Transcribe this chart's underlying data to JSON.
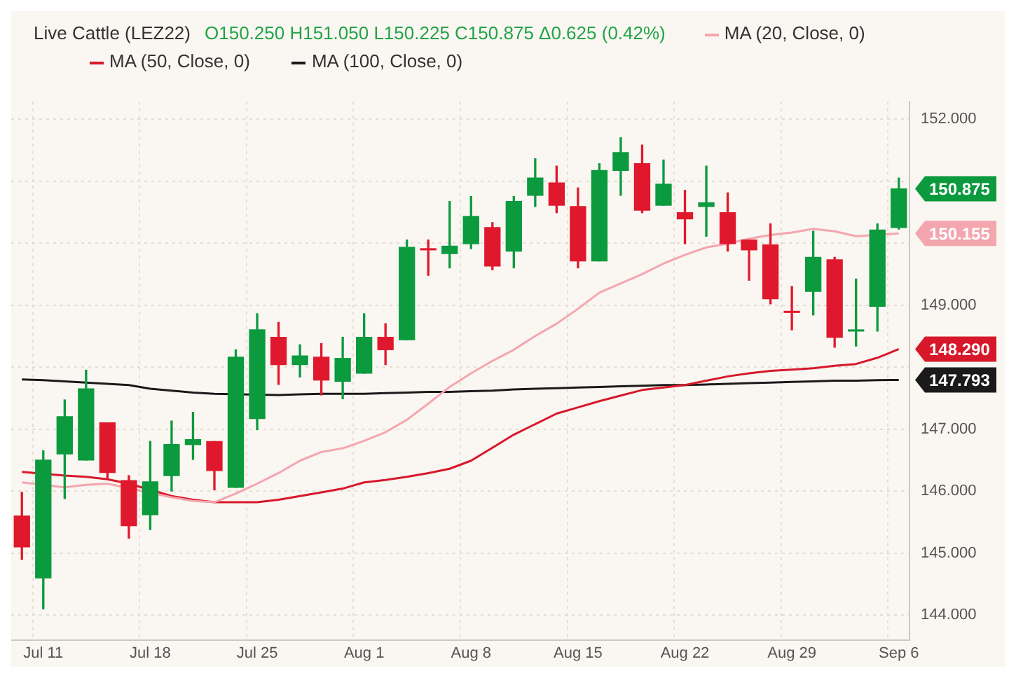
{
  "chart_data": {
    "type": "candlestick",
    "title": "Live Cattle (LEZ22)",
    "subtitle": "O150.250 H151.050 L150.225 C150.875 Δ0.625 (0.42%)",
    "categories": [
      null,
      "Jul 11",
      null,
      null,
      null,
      null,
      "Jul 18",
      null,
      null,
      null,
      null,
      "Jul 25",
      null,
      null,
      null,
      null,
      "Aug 1",
      null,
      null,
      null,
      null,
      "Aug 8",
      null,
      null,
      null,
      null,
      "Aug 15",
      null,
      null,
      null,
      null,
      "Aug 22",
      null,
      null,
      null,
      null,
      "Aug 29",
      null,
      null,
      null,
      null,
      "Sep 6"
    ],
    "ohlc": [
      [
        145.6,
        145.98,
        144.9,
        145.1
      ],
      [
        144.6,
        146.65,
        144.1,
        146.5
      ],
      [
        146.6,
        147.47,
        145.88,
        147.2
      ],
      [
        146.5,
        147.95,
        146.5,
        147.65
      ],
      [
        147.1,
        147.1,
        146.2,
        146.3
      ],
      [
        146.17,
        146.25,
        145.24,
        145.44
      ],
      [
        145.62,
        146.8,
        145.38,
        146.15
      ],
      [
        146.25,
        147.13,
        146.0,
        146.75
      ],
      [
        146.75,
        147.27,
        146.51,
        146.83
      ],
      [
        146.8,
        146.8,
        146.02,
        146.33
      ],
      [
        146.06,
        148.28,
        146.06,
        148.16
      ],
      [
        147.17,
        148.86,
        146.99,
        148.6
      ],
      [
        148.48,
        148.72,
        147.72,
        148.04
      ],
      [
        148.04,
        148.36,
        147.84,
        148.18
      ],
      [
        148.16,
        148.38,
        147.55,
        147.79
      ],
      [
        147.77,
        148.48,
        147.49,
        148.14
      ],
      [
        147.9,
        148.86,
        147.9,
        148.48
      ],
      [
        148.48,
        148.7,
        148.04,
        148.28
      ],
      [
        148.44,
        150.05,
        148.44,
        149.93
      ],
      [
        149.91,
        150.05,
        149.48,
        149.89
      ],
      [
        149.83,
        150.67,
        149.6,
        149.95
      ],
      [
        149.99,
        150.75,
        149.91,
        150.43
      ],
      [
        150.25,
        150.33,
        149.57,
        149.63
      ],
      [
        149.87,
        150.75,
        149.6,
        150.67
      ],
      [
        150.77,
        151.36,
        150.59,
        151.05
      ],
      [
        150.97,
        151.24,
        150.49,
        150.61
      ],
      [
        150.59,
        150.89,
        149.6,
        149.71
      ],
      [
        149.71,
        151.28,
        149.71,
        151.17
      ],
      [
        151.17,
        151.7,
        150.77,
        151.46
      ],
      [
        151.28,
        151.58,
        150.49,
        150.53
      ],
      [
        150.61,
        151.34,
        150.61,
        150.95
      ],
      [
        150.49,
        150.85,
        149.99,
        150.39
      ],
      [
        150.59,
        151.24,
        150.11,
        150.65
      ],
      [
        150.49,
        150.81,
        149.87,
        149.99
      ],
      [
        150.05,
        150.05,
        149.4,
        149.89
      ],
      [
        149.97,
        150.31,
        149.02,
        149.1
      ],
      [
        148.9,
        149.3,
        148.6,
        148.88
      ],
      [
        149.22,
        150.19,
        148.84,
        149.77
      ],
      [
        149.73,
        149.77,
        148.32,
        148.48
      ],
      [
        148.58,
        149.42,
        148.34,
        148.6
      ],
      [
        148.98,
        150.31,
        148.58,
        150.21
      ],
      [
        150.25,
        151.05,
        150.225,
        150.875
      ]
    ],
    "colors": [
      "#e0182d",
      "#0b9a3e",
      "#0b9a3e",
      "#0b9a3e",
      "#e0182d",
      "#e0182d",
      "#0b9a3e",
      "#0b9a3e",
      "#0b9a3e",
      "#e0182d",
      "#0b9a3e",
      "#0b9a3e",
      "#e0182d",
      "#0b9a3e",
      "#e0182d",
      "#0b9a3e",
      "#0b9a3e",
      "#e0182d",
      "#0b9a3e",
      "#e0182d",
      "#0b9a3e",
      "#0b9a3e",
      "#e0182d",
      "#0b9a3e",
      "#0b9a3e",
      "#e0182d",
      "#e0182d",
      "#0b9a3e",
      "#0b9a3e",
      "#e0182d",
      "#0b9a3e",
      "#e0182d",
      "#0b9a3e",
      "#e0182d",
      "#e0182d",
      "#e0182d",
      "#e0182d",
      "#0b9a3e",
      "#e0182d",
      "#0b9a3e",
      "#0b9a3e",
      "#0b9a3e"
    ],
    "series": [
      {
        "type": "line",
        "name": "MA (20, Close, 0)",
        "color": "#f4a6ae",
        "values": [
          146.14,
          null,
          146.06,
          146.1,
          146.12,
          null,
          null,
          145.9,
          145.84,
          145.82,
          145.96,
          146.12,
          146.29,
          146.49,
          146.63,
          146.69,
          146.81,
          146.95,
          147.15,
          147.41,
          147.68,
          147.9,
          148.1,
          148.28,
          148.5,
          148.7,
          148.94,
          149.2,
          149.35,
          149.5,
          149.67,
          149.81,
          149.93,
          149.99,
          150.07,
          150.13,
          150.17,
          150.23,
          150.19,
          150.11,
          null,
          150.155
        ]
      },
      {
        "type": "line",
        "name": "MA (50, Close, 0)",
        "color": "#d7182a",
        "values": [
          146.31,
          null,
          146.25,
          146.23,
          146.19,
          146.12,
          null,
          145.92,
          145.86,
          145.82,
          145.82,
          145.82,
          145.86,
          145.92,
          145.98,
          146.04,
          146.14,
          146.18,
          146.23,
          146.29,
          146.36,
          146.49,
          146.7,
          146.91,
          147.08,
          147.25,
          147.35,
          147.45,
          147.54,
          147.63,
          147.67,
          147.71,
          147.78,
          147.85,
          147.9,
          147.94,
          147.96,
          147.98,
          148.02,
          148.05,
          148.15,
          148.29
        ]
      },
      {
        "type": "line",
        "name": "MA (100, Close, 0)",
        "color": "#1a1a1a",
        "values": [
          147.8,
          147.79,
          147.77,
          147.75,
          147.73,
          147.71,
          147.65,
          147.62,
          147.59,
          147.57,
          null,
          null,
          147.55,
          147.56,
          147.57,
          147.57,
          147.57,
          147.58,
          147.59,
          147.6,
          147.6,
          147.61,
          147.62,
          147.64,
          147.65,
          147.66,
          147.67,
          147.68,
          147.69,
          147.7,
          147.71,
          147.71,
          147.72,
          147.73,
          147.74,
          147.75,
          147.76,
          147.77,
          147.78,
          147.78,
          147.79,
          147.793
        ]
      }
    ],
    "ylim": [
      143.6,
      152.28
    ],
    "yticks": [
      {
        "value": 144,
        "label": "144.000"
      },
      {
        "value": 145,
        "label": "145.000"
      },
      {
        "value": 146,
        "label": "146.000"
      },
      {
        "value": 147,
        "label": "147.000"
      },
      {
        "value": 148,
        "label": null
      },
      {
        "value": 149,
        "label": "149.000"
      },
      {
        "value": 150,
        "label": null
      },
      {
        "value": 151,
        "label": null
      },
      {
        "value": 152,
        "label": "152.000"
      }
    ],
    "grid": true,
    "legend": "top left",
    "marker": "none",
    "annotations": [
      "150.875",
      "150.155",
      "148.290",
      "147.793"
    ]
  }
}
